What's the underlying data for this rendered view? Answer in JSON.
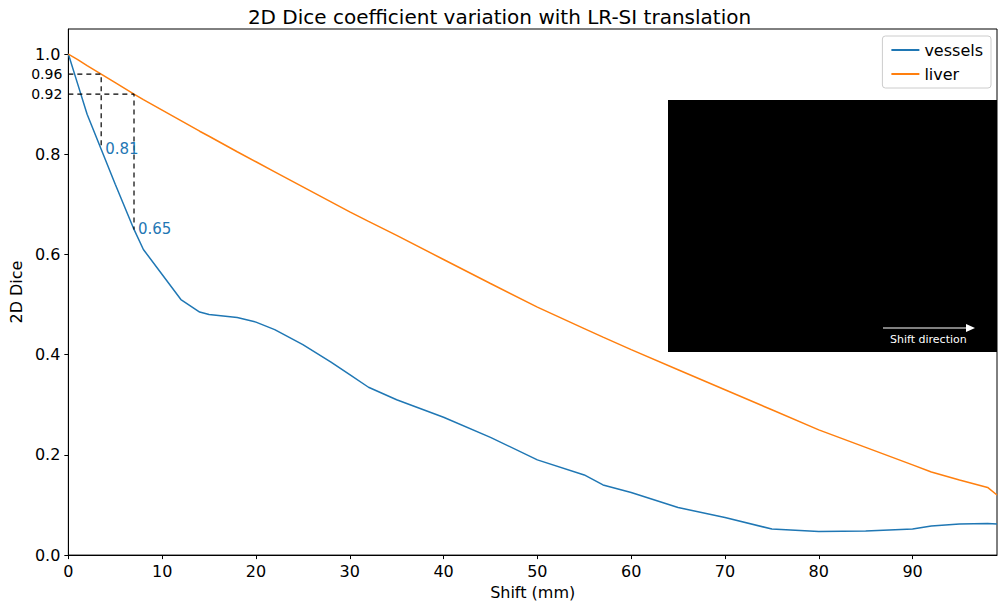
{
  "chart_data": {
    "type": "line",
    "title": "2D Dice coefficient variation with LR-SI translation",
    "x_label": "Shift (mm)",
    "y_label": "2D Dice",
    "x": [
      0,
      1,
      2,
      3.5,
      5,
      7,
      8,
      10,
      12,
      14,
      15,
      18,
      20,
      22,
      25,
      28,
      30,
      32,
      35,
      40,
      45,
      50,
      55,
      57,
      60,
      65,
      70,
      75,
      80,
      85,
      90,
      92,
      95,
      98,
      99
    ],
    "series": [
      {
        "name": "vessels",
        "color": "#1f77b4",
        "values": [
          1.0,
          0.94,
          0.88,
          0.81,
          0.74,
          0.65,
          0.61,
          0.56,
          0.51,
          0.485,
          0.48,
          0.474,
          0.465,
          0.45,
          0.42,
          0.385,
          0.36,
          0.335,
          0.31,
          0.275,
          0.235,
          0.19,
          0.16,
          0.14,
          0.125,
          0.095,
          0.075,
          0.052,
          0.047,
          0.048,
          0.052,
          0.058,
          0.062,
          0.063,
          0.062
        ]
      },
      {
        "name": "liver",
        "color": "#ff7f0e",
        "values": [
          1.0,
          0.989,
          0.977,
          0.96,
          0.943,
          0.92,
          0.909,
          0.888,
          0.867,
          0.846,
          0.836,
          0.805,
          0.785,
          0.765,
          0.735,
          0.705,
          0.685,
          0.666,
          0.638,
          0.59,
          0.542,
          0.495,
          0.452,
          0.435,
          0.41,
          0.37,
          0.33,
          0.29,
          0.25,
          0.215,
          0.18,
          0.166,
          0.15,
          0.135,
          0.12
        ]
      }
    ],
    "xlim": [
      0,
      99
    ],
    "xticks": [
      0,
      10,
      20,
      30,
      40,
      50,
      60,
      70,
      80,
      90
    ],
    "ylim": [
      0,
      1.05
    ],
    "yticks": [
      {
        "value": 0,
        "label": "0.0"
      },
      0.2,
      0.4,
      0.6,
      0.8,
      {
        "value": 1,
        "label": "1.0"
      }
    ],
    "guides": [
      {
        "x": 3.5,
        "y_top": 0.96,
        "y_bottom": 0.81,
        "top_label": "0.96",
        "bottom_label": "0.81"
      },
      {
        "x": 7,
        "y_top": 0.92,
        "y_bottom": 0.65,
        "top_label": "0.92",
        "bottom_label": "0.65"
      }
    ],
    "inset_text": "Shift direction",
    "legend": "upper right",
    "grid": false
  }
}
